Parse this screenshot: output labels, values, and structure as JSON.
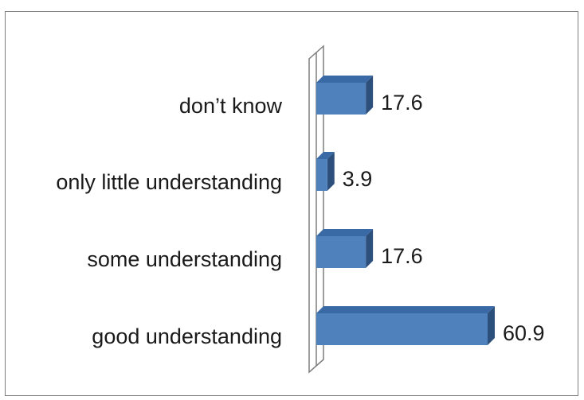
{
  "chart_data": {
    "type": "bar",
    "orientation": "horizontal",
    "style": "3d",
    "categories": [
      "don’t know",
      "only little understanding",
      "some understanding",
      "good understanding"
    ],
    "values": [
      17.6,
      3.9,
      17.6,
      60.9
    ],
    "value_labels": [
      "17.6",
      "3.9",
      "17.6",
      "60.9"
    ],
    "title": "",
    "xlabel": "",
    "ylabel": "",
    "xlim": [
      0,
      70
    ],
    "grid": false,
    "legend": "none",
    "colors": {
      "bar_front": "#4f81bd",
      "bar_top": "#3a6aa6",
      "bar_side": "#2c4f7c",
      "wall_stroke": "#7f7f7f"
    }
  }
}
